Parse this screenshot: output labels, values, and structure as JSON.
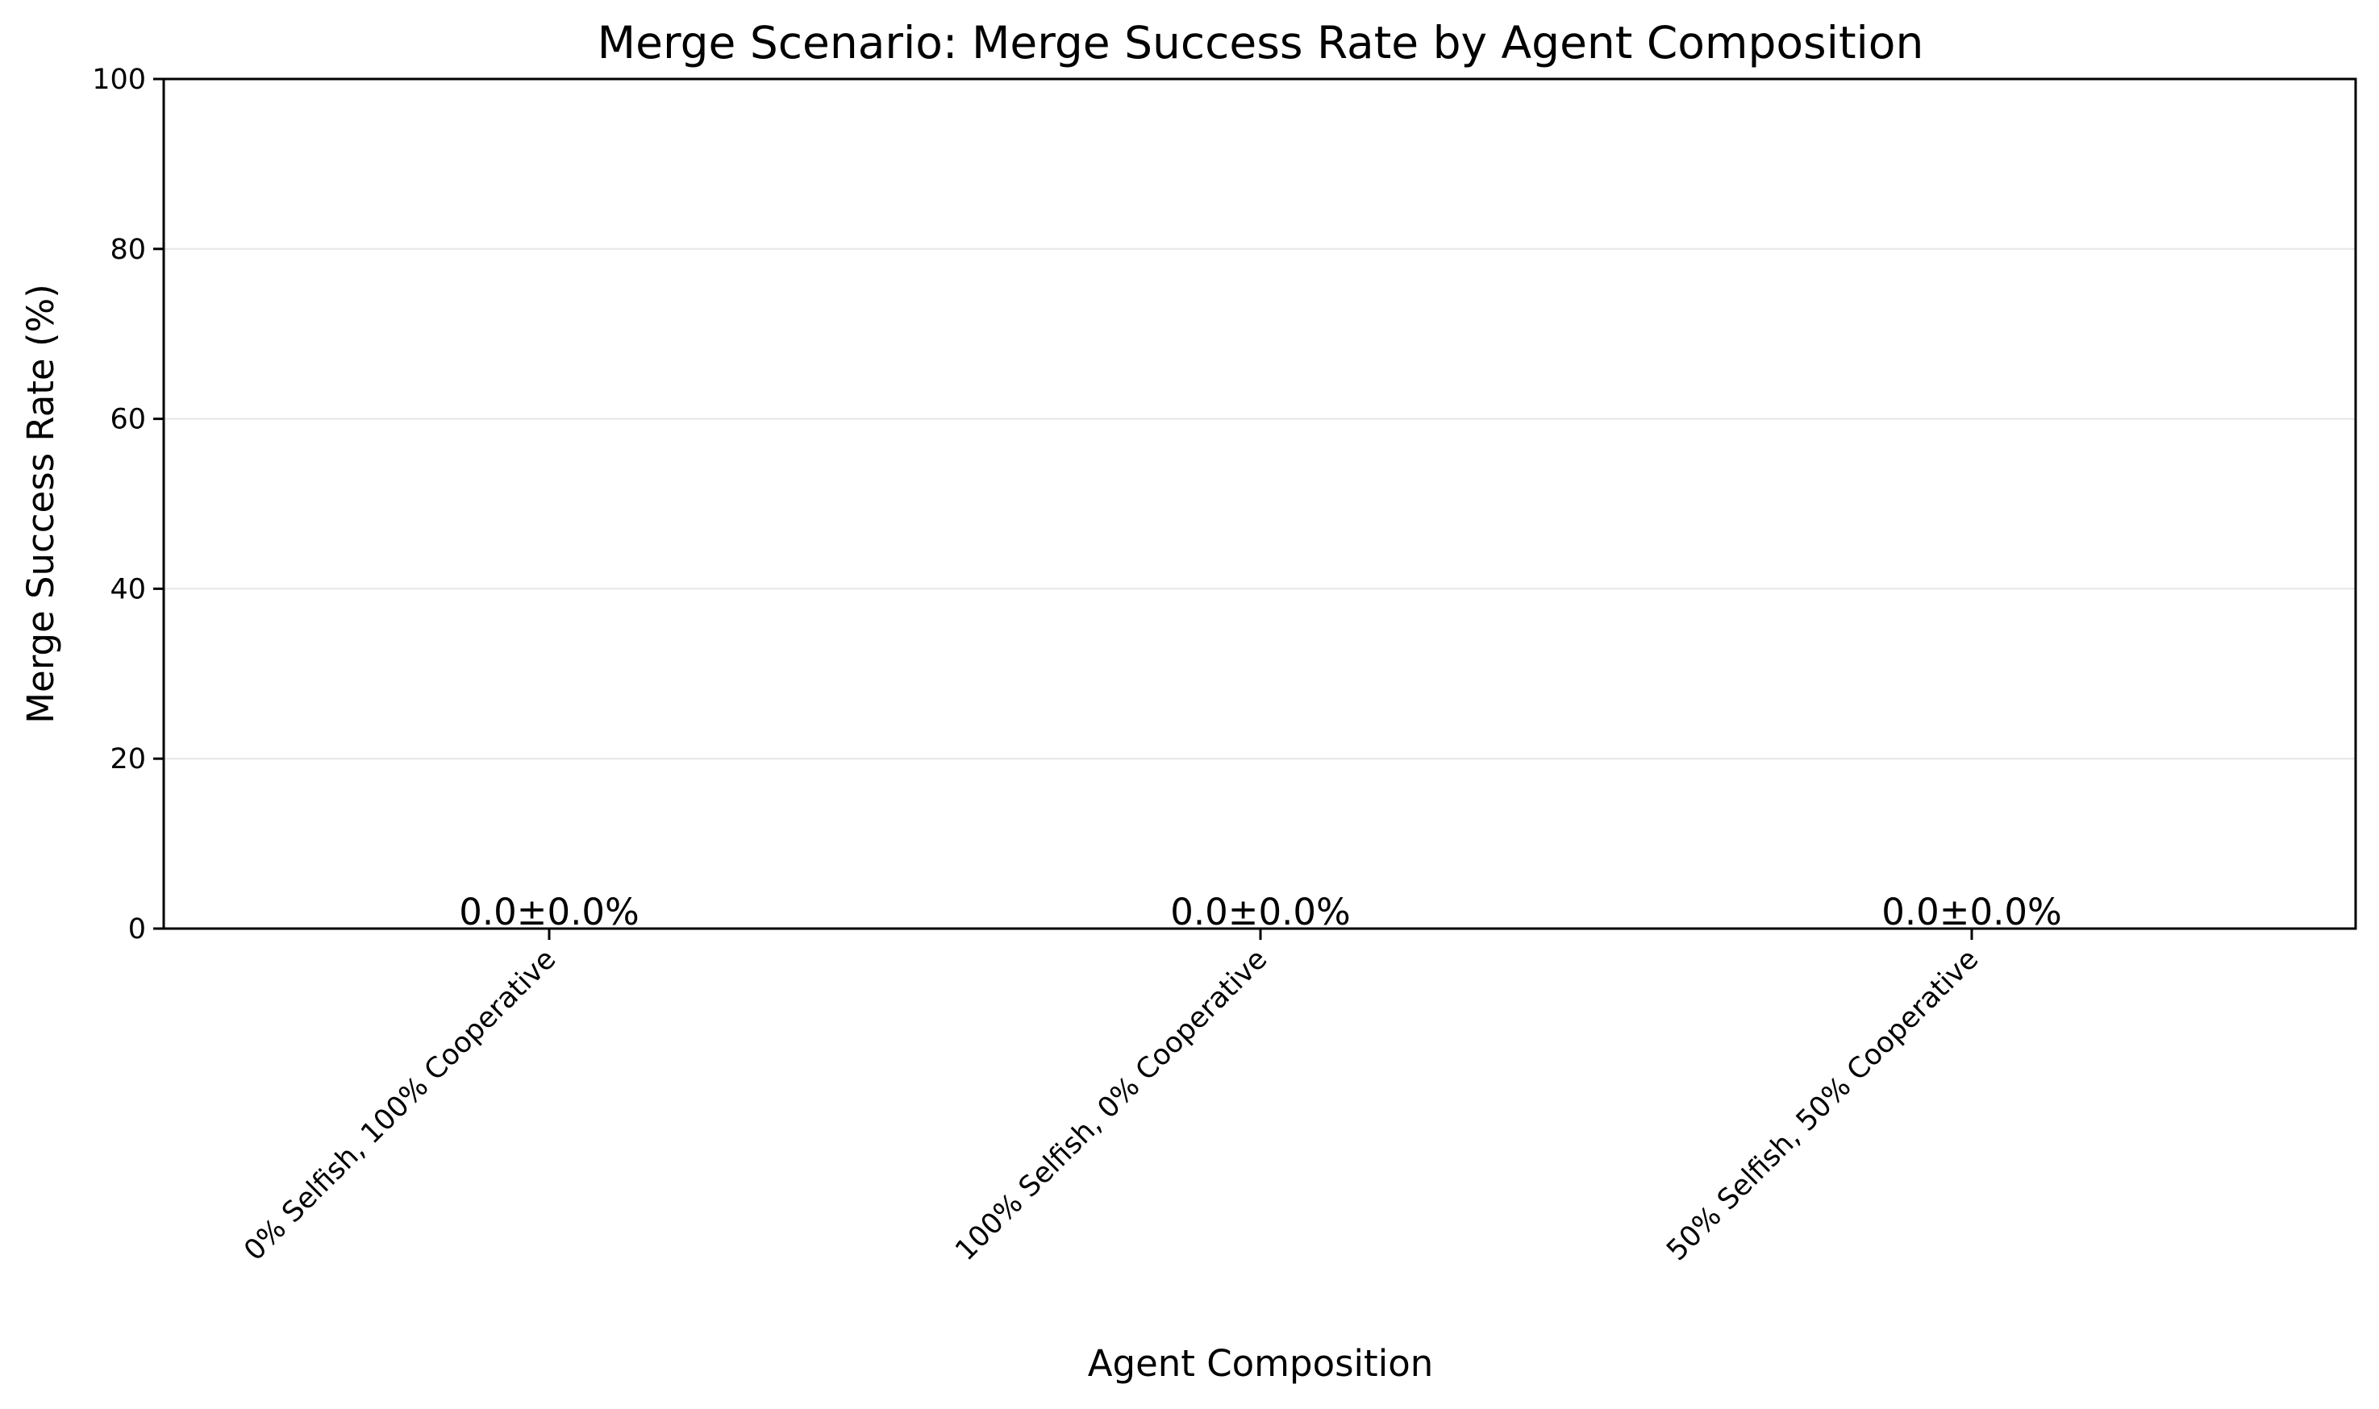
{
  "chart_data": {
    "type": "bar",
    "title": "Merge Scenario: Merge Success Rate by Agent Composition",
    "xlabel": "Agent Composition",
    "ylabel": "Merge Success Rate (%)",
    "categories": [
      "0% Selfish, 100% Cooperative",
      "100% Selfish, 0% Cooperative",
      "50% Selfish, 50% Cooperative"
    ],
    "values": [
      0.0,
      0.0,
      0.0
    ],
    "errors": [
      0.0,
      0.0,
      0.0
    ],
    "value_labels": [
      "0.0±0.0%",
      "0.0±0.0%",
      "0.0±0.0%"
    ],
    "ylim": [
      0,
      100
    ],
    "yticks": [
      0,
      20,
      40,
      60,
      80,
      100
    ],
    "ytick_labels": [
      "0",
      "20",
      "40",
      "60",
      "80",
      "100"
    ],
    "grid": "y",
    "legend": "none"
  },
  "colors": {
    "axis": "#000000",
    "grid": "#e6e6e6",
    "bar": "#1f77b4"
  }
}
